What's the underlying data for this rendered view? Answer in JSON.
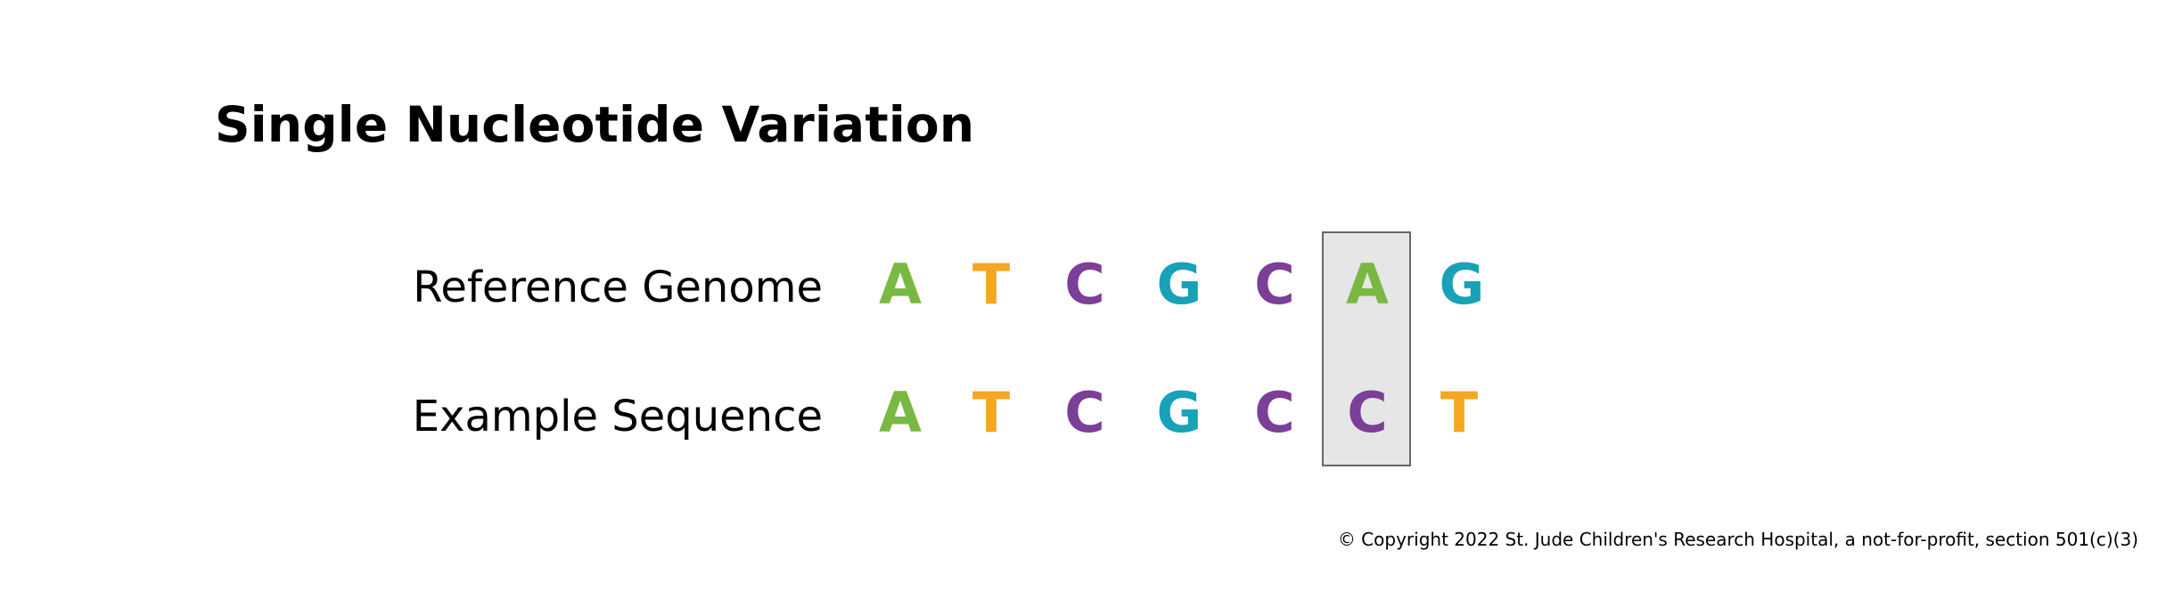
{
  "title": "Single Nucleotide Variation",
  "rows": [
    {
      "label": "Reference Genome",
      "bases": [
        "A",
        "T",
        "C",
        "G",
        "C",
        "A",
        "G"
      ]
    },
    {
      "label": "Example Sequence",
      "bases": [
        "A",
        "T",
        "C",
        "G",
        "C",
        "C",
        "T"
      ]
    }
  ],
  "highlighted_position": 6,
  "base_colors": {
    "A": "#7ab844",
    "T": "#f5a623",
    "C": "#7b3f98",
    "G": "#17a2b8"
  },
  "highlight_colors": {
    "fill": "#e6e6e6",
    "border": "#666666"
  },
  "copyright": "© Copyright 2022 St. Jude Children's Research Hospital, a not-for-profit, section 501(c)(3)"
}
